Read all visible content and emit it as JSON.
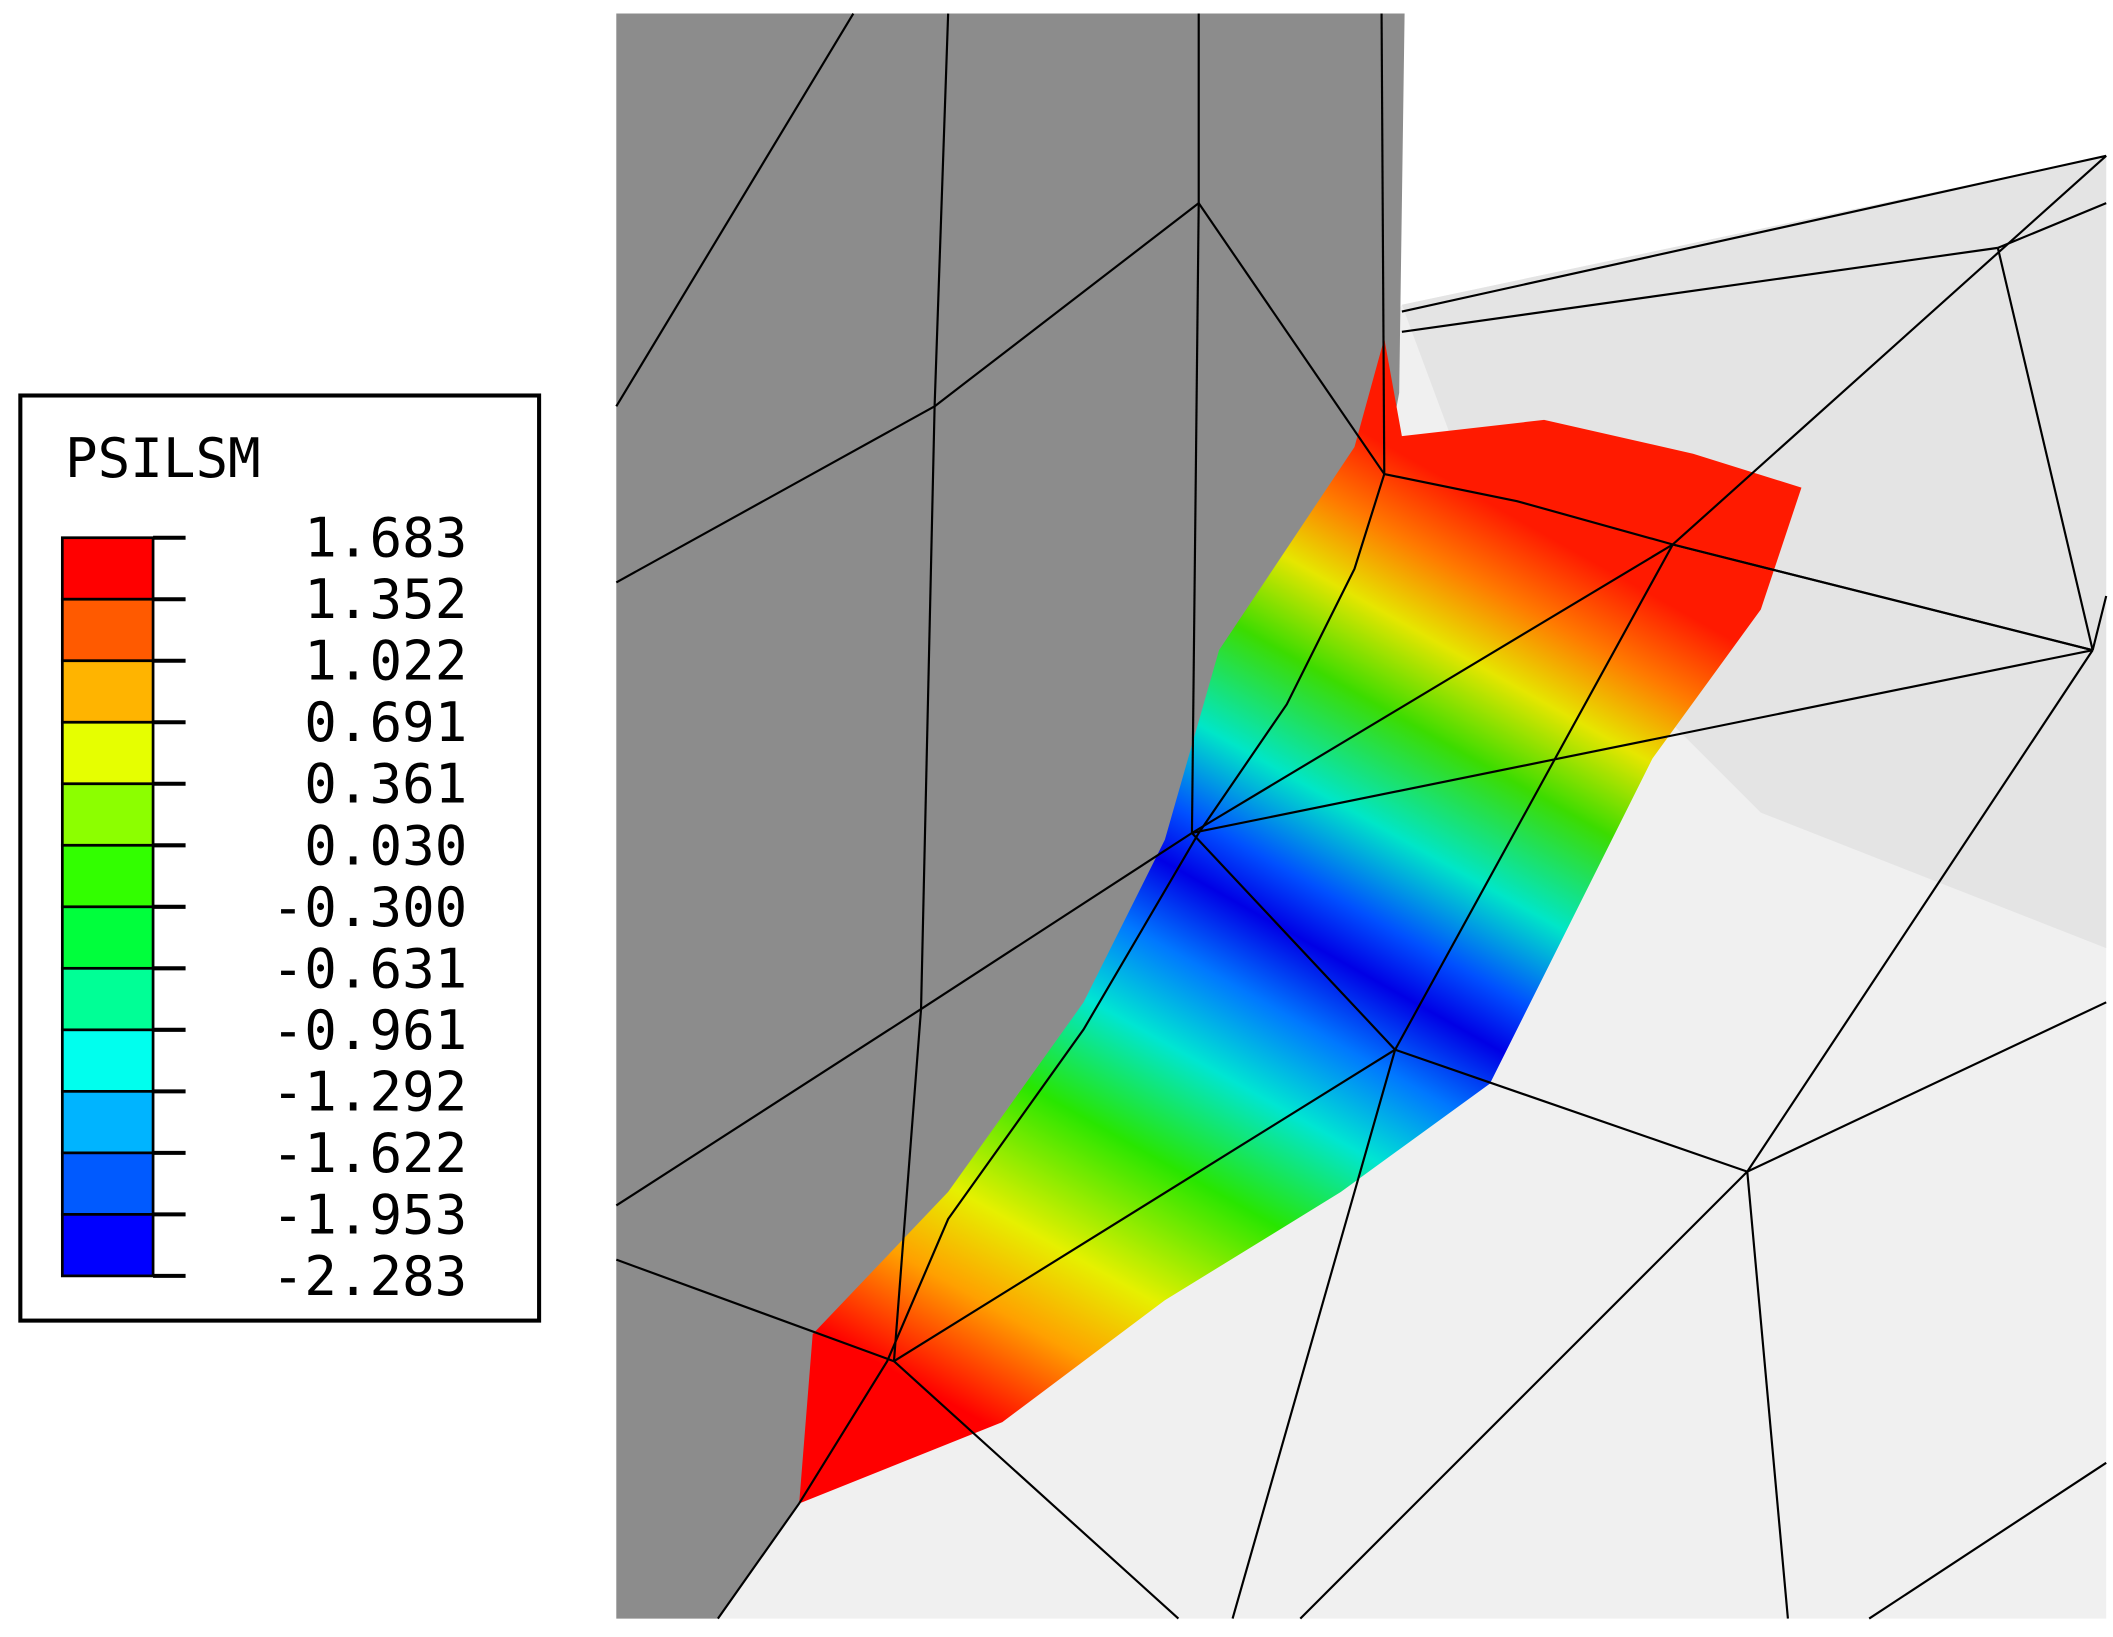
{
  "legend": {
    "title": "PSILSM",
    "labels": [
      "1.683",
      "1.352",
      "1.022",
      "0.691",
      "0.361",
      "0.030",
      "-0.300",
      "-0.631",
      "-0.961",
      "-1.292",
      "-1.622",
      "-1.953",
      "-2.283"
    ],
    "colors": [
      "#ff0000",
      "#ff5a00",
      "#ffb400",
      "#e6ff00",
      "#8cff00",
      "#32ff00",
      "#00ff3c",
      "#00ff96",
      "#00ffee",
      "#00b4ff",
      "#005aff",
      "#0000ff"
    ]
  }
}
